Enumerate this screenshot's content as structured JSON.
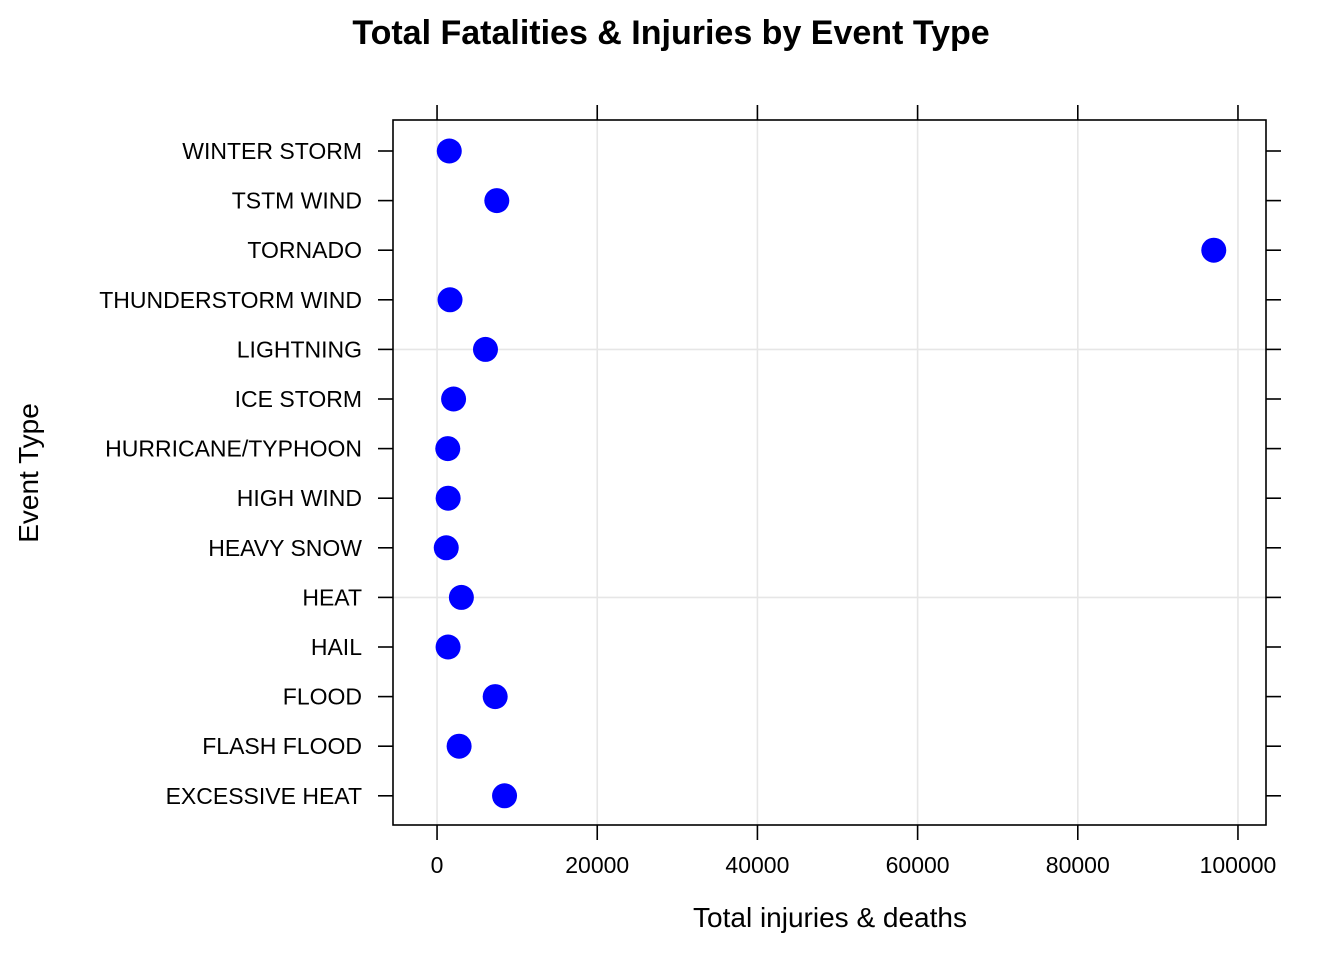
{
  "chart_data": {
    "type": "scatter",
    "title": "Total Fatalities & Injuries by Event Type",
    "xlabel": "Total injuries & deaths",
    "ylabel": "Event Type",
    "xlim": [
      -5500,
      103500
    ],
    "x_ticks": [
      0,
      20000,
      40000,
      60000,
      80000,
      100000
    ],
    "x_tick_labels": [
      "0",
      "20000",
      "40000",
      "60000",
      "80000",
      "100000"
    ],
    "grid": true,
    "point_color": "#0000FF",
    "categories": [
      "EXCESSIVE HEAT",
      "FLASH FLOOD",
      "FLOOD",
      "HAIL",
      "HEAT",
      "HEAVY SNOW",
      "HIGH WIND",
      "HURRICANE/TYPHOON",
      "ICE STORM",
      "LIGHTNING",
      "THUNDERSTORM WIND",
      "TORNADO",
      "TSTM WIND",
      "WINTER STORM"
    ],
    "values": [
      8428,
      2755,
      7259,
      1376,
      3037,
      1148,
      1385,
      1339,
      2064,
      6046,
      1621,
      96979,
      7461,
      1527
    ]
  }
}
